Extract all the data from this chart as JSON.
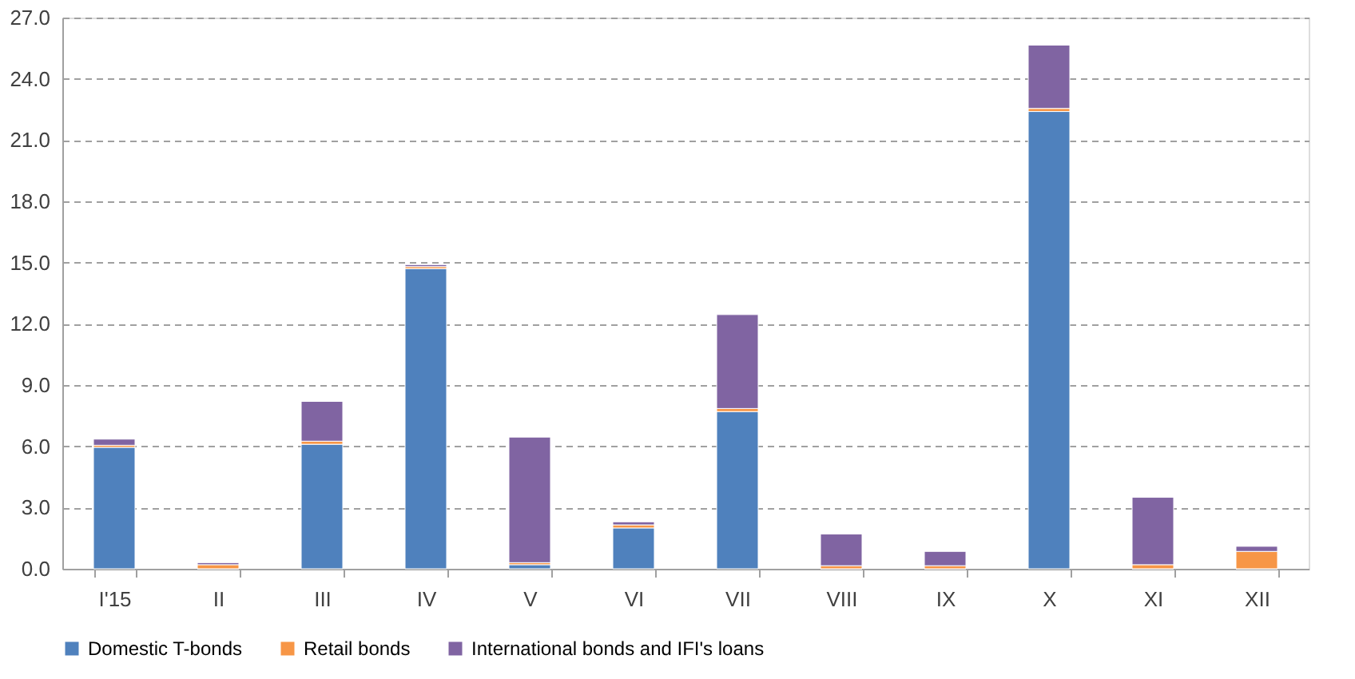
{
  "chart_data": {
    "type": "bar",
    "stacked": true,
    "categories": [
      "I'15",
      "II",
      "III",
      "IV",
      "V",
      "VI",
      "VII",
      "VIII",
      "IX",
      "X",
      "XI",
      "XII"
    ],
    "series": [
      {
        "name": "Domestic T-bonds",
        "color": "#4f81bd",
        "values": [
          5.95,
          0,
          6.1,
          14.7,
          0.2,
          2.0,
          7.7,
          0,
          0,
          22.4,
          0,
          0
        ]
      },
      {
        "name": "Retail bonds",
        "color": "#f79646",
        "values": [
          0.1,
          0.2,
          0.15,
          0.1,
          0.1,
          0.15,
          0.15,
          0.15,
          0.15,
          0.15,
          0.2,
          0.85
        ]
      },
      {
        "name": "International bonds and IFI's loans",
        "color": "#8064a2",
        "values": [
          0.3,
          0.1,
          1.95,
          0.1,
          6.15,
          0.15,
          4.6,
          1.55,
          0.7,
          3.1,
          3.3,
          0.25
        ]
      }
    ],
    "ylim": [
      0,
      27
    ],
    "yticks": [
      {
        "value": 0,
        "label": "0.0"
      },
      {
        "value": 3,
        "label": "3.0"
      },
      {
        "value": 6,
        "label": "6.0"
      },
      {
        "value": 9,
        "label": "9.0"
      },
      {
        "value": 12,
        "label": "12.0"
      },
      {
        "value": 15,
        "label": "15.0"
      },
      {
        "value": 18,
        "label": "18.0"
      },
      {
        "value": 21,
        "label": "21.0"
      },
      {
        "value": 24,
        "label": "24.0"
      },
      {
        "value": 27,
        "label": "27.0"
      }
    ],
    "grid": "y",
    "legend": "bottom"
  }
}
